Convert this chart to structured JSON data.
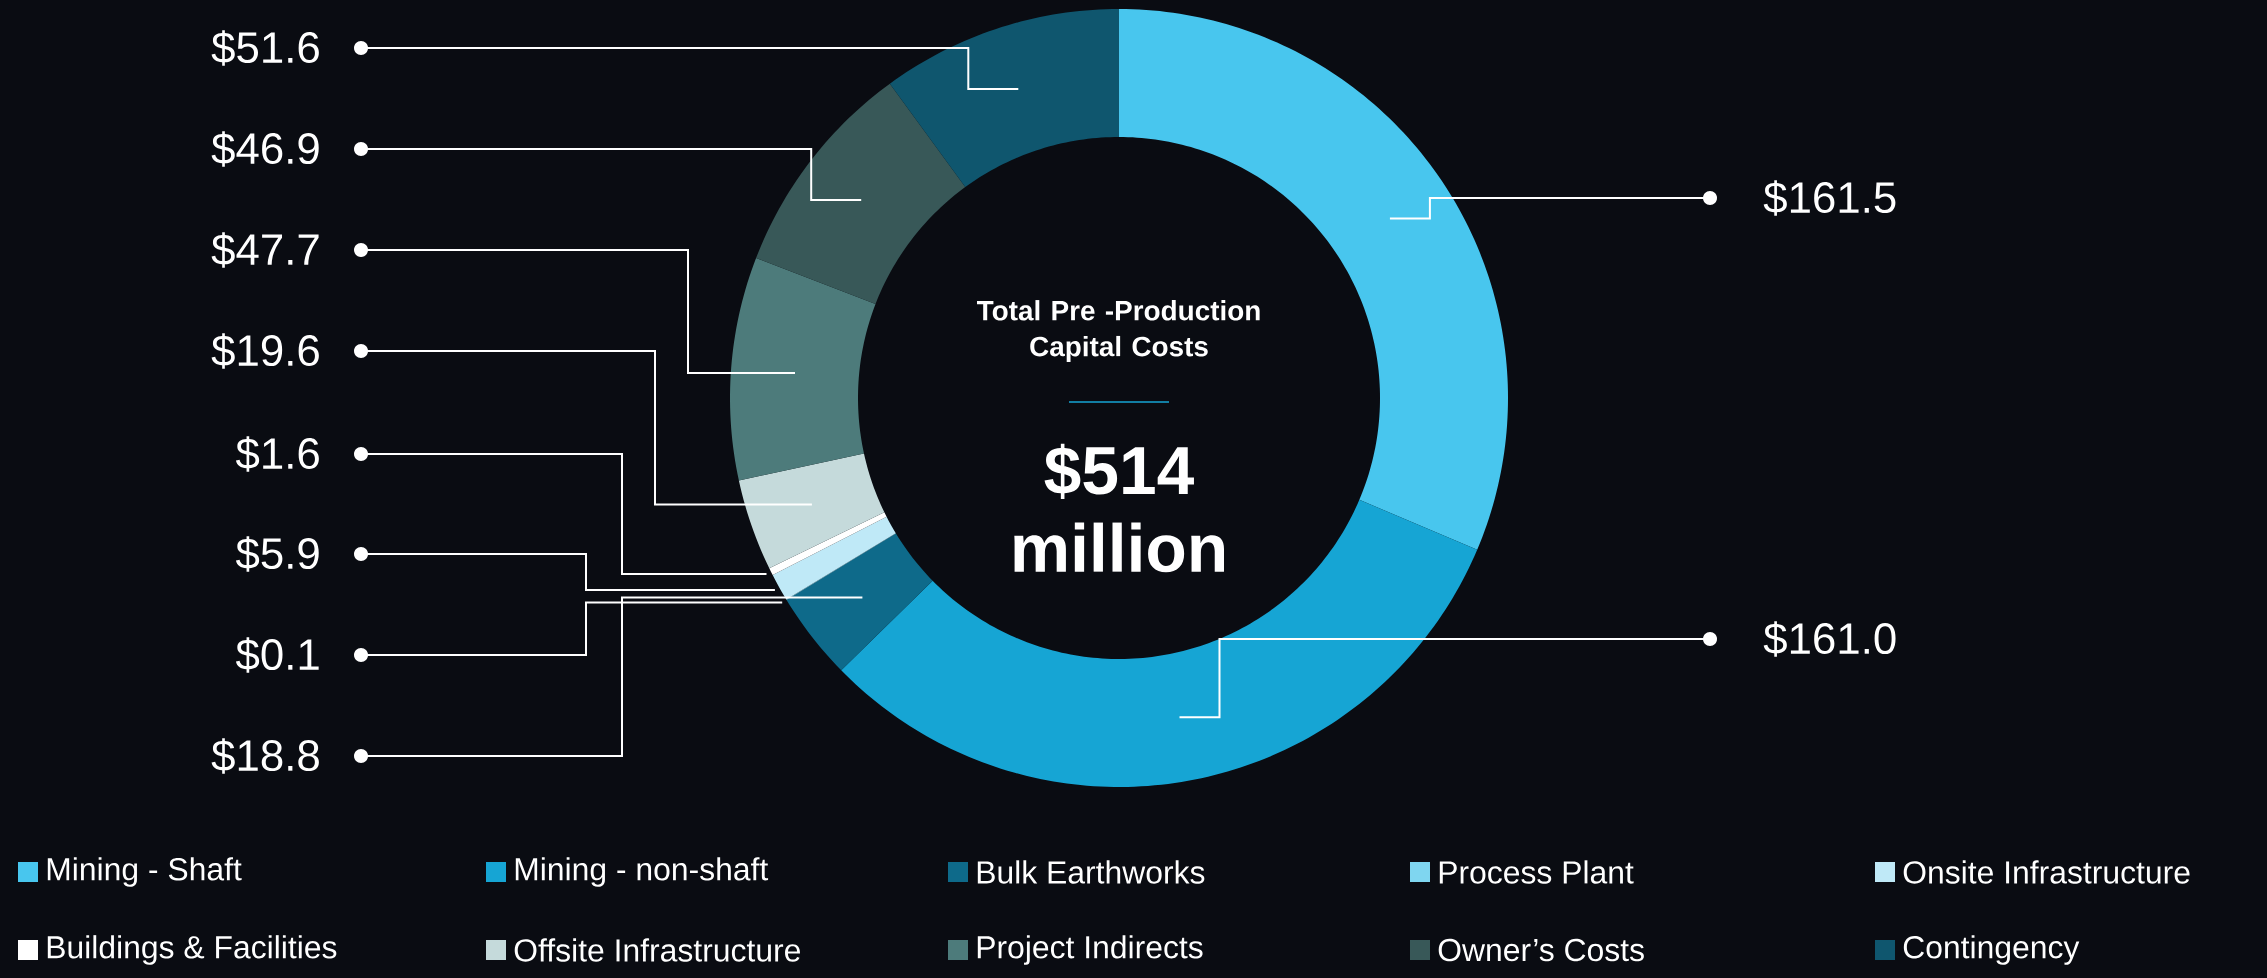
{
  "chart_data": {
    "type": "donut",
    "categories": [
      "Mining - Shaft",
      "Mining - non-shaft",
      "Bulk Earthworks",
      "Process Plant",
      "Onsite Infrastructure",
      "Buildings & Facilities",
      "Offsite Infrastructure",
      "Project Indirects",
      "Owner’s Costs",
      "Contingency"
    ],
    "values": [
      161.5,
      161.0,
      18.8,
      0.1,
      5.9,
      1.6,
      19.6,
      47.7,
      46.9,
      51.6
    ],
    "value_labels": [
      "$161.5",
      "$161.0",
      "$18.8",
      "$0.1",
      "$5.9",
      "$1.6",
      "$19.6",
      "$47.7",
      "$46.9",
      "$51.6"
    ],
    "colors": [
      "#48c6ee",
      "#16a5d4",
      "#0e6a8a",
      "#7fd6f0",
      "#bfe9f7",
      "#ffffff",
      "#c5dadb",
      "#4d7b7b",
      "#385858",
      "#0f566e"
    ],
    "annotations": [
      "Total Pre -Production Capital Costs",
      "$514 million"
    ],
    "legend": "bottom"
  }
}
